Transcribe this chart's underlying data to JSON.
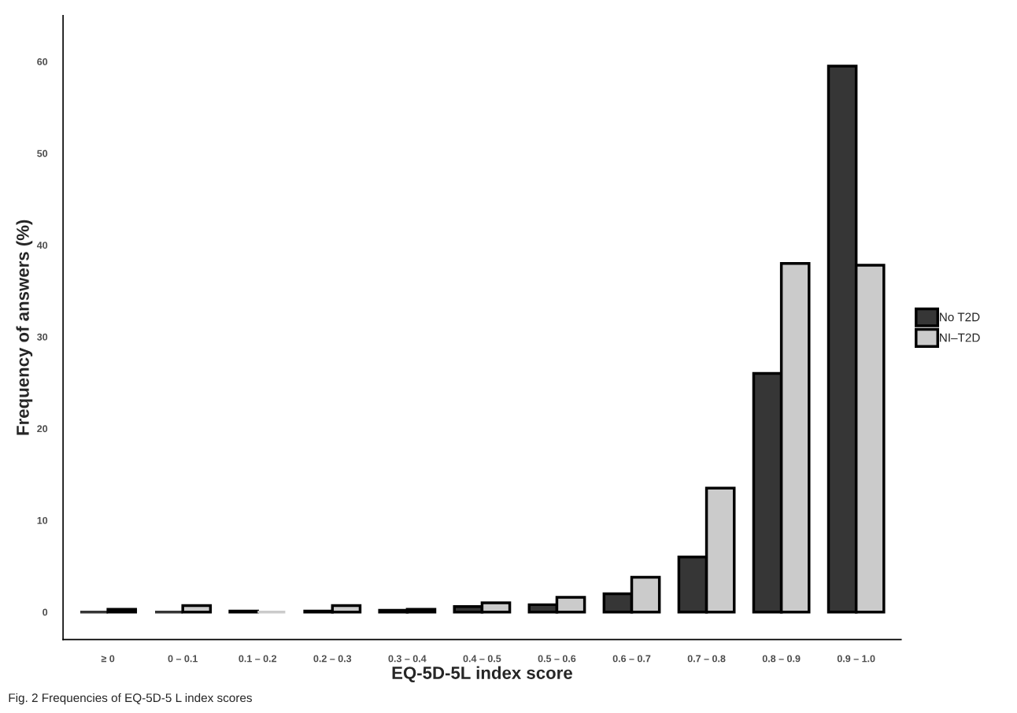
{
  "chart_data": {
    "type": "bar",
    "xlabel": "EQ-5D-5L index score",
    "ylabel": "Frequency of answers (%)",
    "categories": [
      "≥ 0",
      "0 – 0.1",
      "0.1 – 0.2",
      "0.2 – 0.3",
      "0.3 – 0.4",
      "0.4 – 0.5",
      "0.5 – 0.6",
      "0.6 – 0.7",
      "0.7 – 0.8",
      "0.8 – 0.9",
      "0.9 – 1.0"
    ],
    "series": [
      {
        "name": "No T2D",
        "color": "#363636",
        "values": [
          0,
          0,
          0.1,
          0.1,
          0.2,
          0.6,
          0.8,
          2.0,
          6.0,
          26.0,
          59.5
        ]
      },
      {
        "name": "NI–T2D",
        "color": "#cbcbcb",
        "values": [
          0.3,
          0.7,
          0,
          0.7,
          0.3,
          1.0,
          1.6,
          3.8,
          13.5,
          38.0,
          37.8
        ]
      }
    ],
    "ylim": [
      -3,
      65
    ],
    "yticks": [
      0,
      10,
      20,
      30,
      40,
      50,
      60
    ],
    "grid": false,
    "legend": "right",
    "annotations": [
      "Fig. 2 Frequencies of EQ-5D-5 L index scores"
    ]
  }
}
